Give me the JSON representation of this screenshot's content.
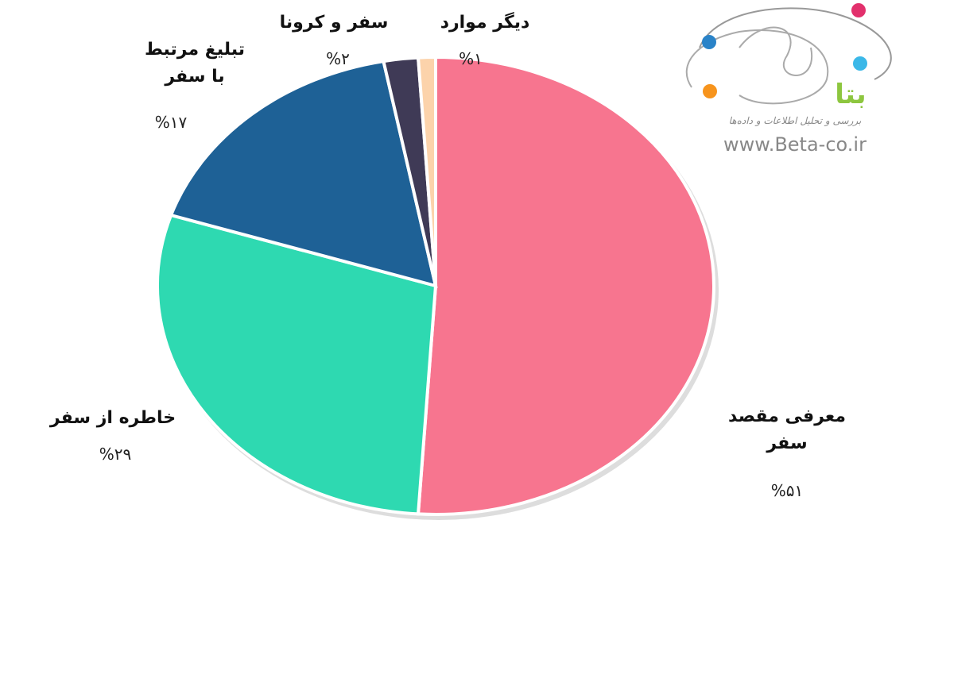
{
  "chart_data": {
    "type": "pie",
    "categories": [
      "معرفی مقصد سفر",
      "خاطره از سفر",
      "تبلیغ مرتبط با سفر",
      "سفر و کرونا",
      "دیگر موارد"
    ],
    "values": [
      51,
      29,
      17,
      2,
      1
    ],
    "value_labels": [
      "%۵۱",
      "%۲۹",
      "%۱۷",
      "%۲",
      "%۱"
    ],
    "colors": [
      "#f7758f",
      "#2ed9b1",
      "#1e6196",
      "#3f3a56",
      "#fcd3ab"
    ]
  },
  "logo": {
    "name": "بتا",
    "tagline": "بررسی و تحلیل اطلاعات و داده‌ها",
    "website": "www.Beta-co.ir"
  }
}
